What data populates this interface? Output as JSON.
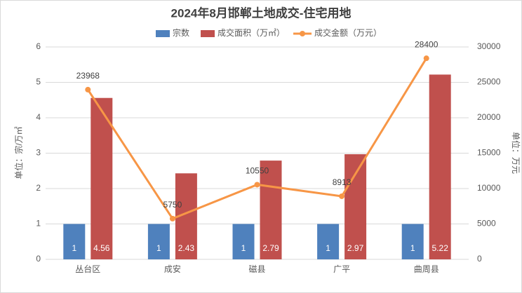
{
  "chart_data": {
    "type": "bar",
    "title": "2024年8月邯郸土地成交-住宅用地",
    "categories": [
      "丛台区",
      "成安",
      "磁县",
      "广平",
      "曲周县"
    ],
    "series": [
      {
        "name": "宗数",
        "color": "#4f81bd",
        "values": [
          1,
          1,
          1,
          1,
          1
        ]
      },
      {
        "name": "成交面积（万㎡）",
        "color": "#c0504d",
        "values": [
          4.56,
          2.43,
          2.79,
          2.97,
          5.22
        ]
      },
      {
        "name": "成交金额（万元）",
        "color": "#f79646",
        "type": "line",
        "axis": "y2",
        "values": [
          23968,
          5750,
          10550,
          8913,
          28400
        ]
      }
    ],
    "ylabel": "单位：宗/万㎡",
    "y2label": "单位：万元",
    "ylim": [
      0,
      6
    ],
    "yticks": [
      0,
      1,
      2,
      3,
      4,
      5,
      6
    ],
    "y2lim": [
      0,
      30000
    ],
    "y2ticks": [
      0,
      5000,
      10000,
      15000,
      20000,
      25000,
      30000
    ],
    "grid": true
  }
}
